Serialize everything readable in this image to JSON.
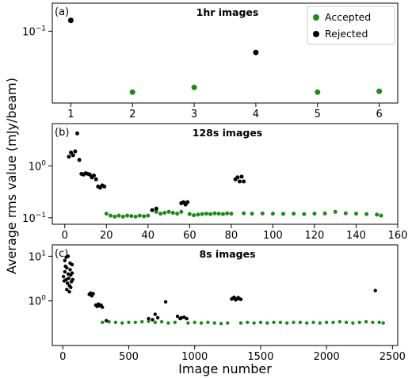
{
  "colors": {
    "accepted": "#1a8a1a",
    "rejected": "#000000"
  },
  "figure": {
    "ylabel": "Average rms value (mJy/beam)",
    "xlabel": "Image number"
  },
  "chart_data": [
    {
      "type": "scatter",
      "panel": "(a)",
      "title": "1hr images",
      "xlim": [
        0.7,
        6.3
      ],
      "ylim": [
        0.03,
        0.16
      ],
      "yscale": "log",
      "x_ticks": [
        "1",
        "2",
        "3",
        "4",
        "5",
        "6"
      ],
      "y_ticks": [
        "10^-1"
      ],
      "legend": {
        "position": "top-right",
        "entries": [
          "Accepted",
          "Rejected"
        ]
      },
      "series": [
        {
          "name": "Accepted",
          "x": [
            2,
            3,
            5,
            6
          ],
          "y": [
            0.036,
            0.039,
            0.036,
            0.0365
          ]
        },
        {
          "name": "Rejected",
          "x": [
            1,
            4
          ],
          "y": [
            0.12,
            0.07
          ]
        }
      ]
    },
    {
      "type": "scatter",
      "panel": "(b)",
      "title": "128s images",
      "xlim": [
        -6,
        160
      ],
      "ylim": [
        0.075,
        6.5
      ],
      "yscale": "log",
      "x_ticks": [
        "0",
        "20",
        "40",
        "60",
        "80",
        "100",
        "120",
        "140",
        "160"
      ],
      "y_ticks": [
        "10^0",
        "10^-1"
      ],
      "series": [
        {
          "name": "Accepted",
          "x": [
            20,
            22,
            24,
            26,
            28,
            30,
            32,
            34,
            36,
            38,
            40,
            44,
            46,
            48,
            50,
            52,
            54,
            56,
            60,
            62,
            64,
            66,
            68,
            70,
            72,
            74,
            76,
            78,
            80,
            86,
            90,
            95,
            100,
            105,
            110,
            115,
            120,
            125,
            130,
            135,
            140,
            145,
            150,
            152
          ],
          "y": [
            0.12,
            0.11,
            0.105,
            0.11,
            0.105,
            0.11,
            0.108,
            0.105,
            0.11,
            0.107,
            0.11,
            0.13,
            0.12,
            0.125,
            0.13,
            0.125,
            0.12,
            0.13,
            0.118,
            0.112,
            0.115,
            0.118,
            0.12,
            0.118,
            0.122,
            0.12,
            0.118,
            0.122,
            0.12,
            0.122,
            0.12,
            0.121,
            0.12,
            0.119,
            0.12,
            0.118,
            0.12,
            0.121,
            0.13,
            0.122,
            0.12,
            0.118,
            0.115,
            0.11
          ]
        },
        {
          "name": "Rejected",
          "x": [
            2,
            3,
            4,
            5,
            6,
            7,
            8,
            9,
            10,
            11,
            12,
            13,
            14,
            15,
            16,
            17,
            18,
            19,
            42,
            44,
            56,
            57,
            58,
            59,
            82,
            83,
            84,
            85,
            86
          ],
          "y": [
            1.5,
            1.8,
            1.6,
            1.9,
            4.2,
            1.3,
            0.7,
            0.68,
            0.72,
            0.7,
            0.68,
            0.6,
            0.65,
            0.55,
            0.4,
            0.38,
            0.42,
            0.4,
            0.14,
            0.15,
            0.19,
            0.2,
            0.18,
            0.2,
            0.55,
            0.6,
            0.5,
            0.62,
            0.5
          ]
        }
      ]
    },
    {
      "type": "scatter",
      "panel": "(c)",
      "title": "8s images",
      "xlim": [
        -80,
        2540
      ],
      "ylim": [
        0.1,
        18
      ],
      "yscale": "log",
      "x_ticks": [
        "0",
        "500",
        "1000",
        "1500",
        "2000",
        "2500"
      ],
      "y_ticks": [
        "10^1",
        "10^0"
      ],
      "series": [
        {
          "name": "Accepted",
          "x": [
            300,
            350,
            400,
            450,
            500,
            550,
            600,
            650,
            700,
            750,
            800,
            850,
            950,
            1000,
            1050,
            1100,
            1150,
            1200,
            1250,
            1350,
            1400,
            1450,
            1500,
            1550,
            1600,
            1650,
            1700,
            1750,
            1800,
            1850,
            1900,
            1950,
            2000,
            2050,
            2100,
            2150,
            2200,
            2250,
            2300,
            2350,
            2400,
            2430
          ],
          "y": [
            0.33,
            0.34,
            0.33,
            0.32,
            0.33,
            0.33,
            0.34,
            0.35,
            0.33,
            0.34,
            0.32,
            0.33,
            0.32,
            0.33,
            0.32,
            0.33,
            0.32,
            0.31,
            0.32,
            0.32,
            0.33,
            0.32,
            0.33,
            0.32,
            0.33,
            0.33,
            0.32,
            0.33,
            0.33,
            0.32,
            0.33,
            0.32,
            0.33,
            0.33,
            0.34,
            0.33,
            0.32,
            0.33,
            0.34,
            0.33,
            0.33,
            0.32
          ]
        },
        {
          "name": "Rejected",
          "x": [
            5,
            10,
            15,
            20,
            25,
            30,
            35,
            40,
            45,
            50,
            55,
            60,
            65,
            70,
            75,
            15,
            25,
            40,
            55,
            70,
            30,
            50,
            60,
            200,
            210,
            220,
            230,
            250,
            260,
            270,
            280,
            290,
            300,
            330,
            650,
            680,
            700,
            720,
            780,
            870,
            890,
            900,
            920,
            940,
            1280,
            1290,
            1300,
            1310,
            1320,
            1330,
            1340,
            1350,
            2370
          ],
          "y": [
            3.5,
            2.8,
            4.5,
            6.0,
            3.0,
            5.5,
            2.5,
            4.0,
            3.2,
            2.2,
            5.0,
            3.8,
            2.7,
            4.2,
            3.0,
            8.0,
            9.5,
            10.0,
            7.0,
            6.5,
            1.8,
            1.6,
            2.0,
            1.4,
            1.5,
            1.3,
            1.45,
            0.8,
            0.75,
            0.85,
            0.78,
            0.8,
            0.72,
            0.36,
            0.4,
            0.38,
            0.5,
            0.42,
            0.95,
            0.45,
            0.4,
            0.42,
            0.43,
            0.4,
            1.1,
            1.15,
            1.2,
            1.05,
            1.1,
            1.18,
            1.12,
            1.08,
            1.7
          ]
        }
      ]
    }
  ]
}
